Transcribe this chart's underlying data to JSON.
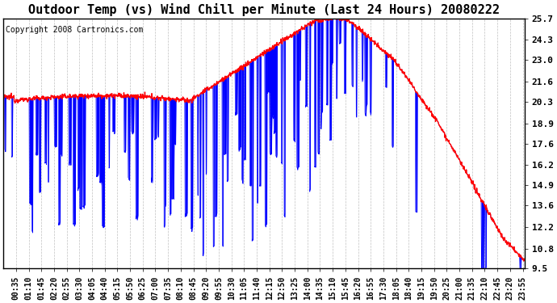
{
  "title": "Outdoor Temp (vs) Wind Chill per Minute (Last 24 Hours) 20080222",
  "copyright": "Copyright 2008 Cartronics.com",
  "ylabel_right_ticks": [
    9.5,
    10.8,
    12.2,
    13.6,
    14.9,
    16.2,
    17.6,
    18.9,
    20.3,
    21.6,
    23.0,
    24.3,
    25.7
  ],
  "ymin": 9.5,
  "ymax": 25.7,
  "background_color": "#ffffff",
  "plot_bg_color": "#ffffff",
  "grid_color": "#c0c0c0",
  "red_color": "#ff0000",
  "blue_color": "#0000ff",
  "title_fontsize": 11,
  "tick_fontsize": 7,
  "copyright_fontsize": 7,
  "x_tick_labels": [
    "00:35",
    "01:10",
    "01:45",
    "02:20",
    "02:55",
    "03:30",
    "04:05",
    "04:40",
    "05:15",
    "05:50",
    "06:25",
    "07:00",
    "07:35",
    "08:10",
    "08:45",
    "09:20",
    "09:55",
    "10:30",
    "11:05",
    "11:40",
    "12:15",
    "12:50",
    "13:25",
    "14:00",
    "14:35",
    "15:10",
    "15:45",
    "16:20",
    "16:55",
    "17:30",
    "18:05",
    "18:40",
    "19:15",
    "19:50",
    "20:25",
    "21:00",
    "21:35",
    "22:10",
    "22:45",
    "23:20",
    "23:55"
  ]
}
